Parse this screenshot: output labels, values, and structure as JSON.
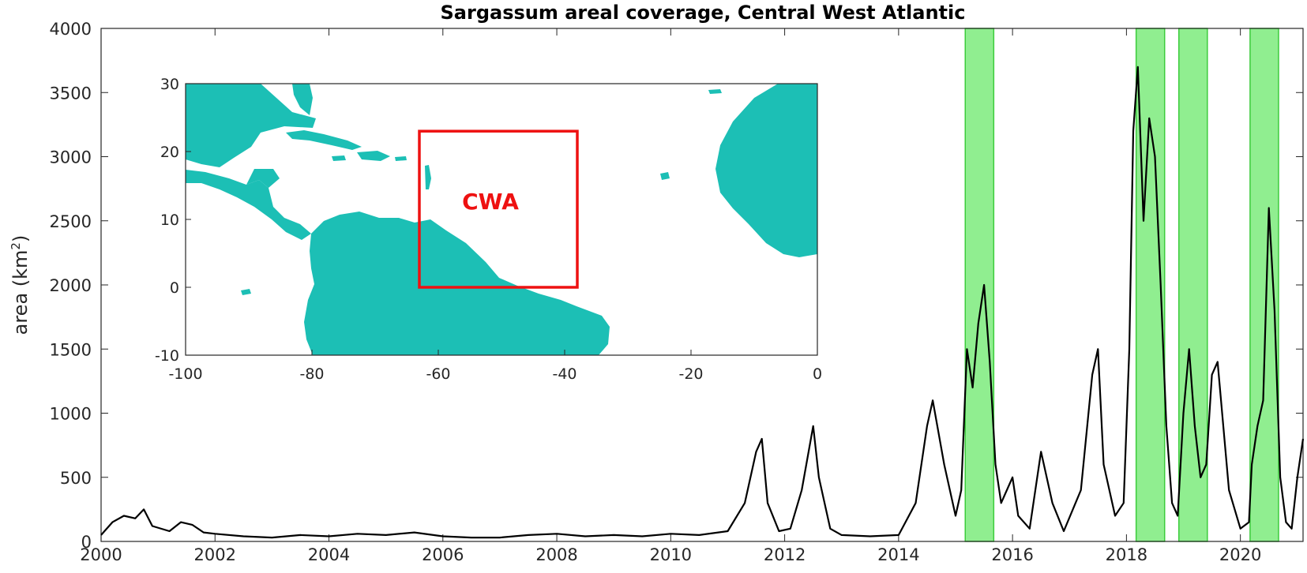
{
  "chart_data": [
    {
      "type": "line",
      "title": "Sargassum areal coverage, Central West Atlantic",
      "ylabel_text": "area (km",
      "ylabel_sup": "2",
      "ylabel_close": ")",
      "xlim": [
        2000,
        2021.1
      ],
      "ylim": [
        0,
        4000
      ],
      "x_ticks": [
        2000,
        2002,
        2004,
        2006,
        2008,
        2010,
        2012,
        2014,
        2016,
        2018,
        2020
      ],
      "x_tick_labels": [
        "2000",
        "2002",
        "2004",
        "2006",
        "2008",
        "2010",
        "2012",
        "2014",
        "2016",
        "2018",
        "2020"
      ],
      "y_ticks": [
        0,
        500,
        1000,
        1500,
        2000,
        2500,
        3000,
        3500,
        4000
      ],
      "y_tick_labels": [
        "0",
        "500",
        "1000",
        "1500",
        "2000",
        "2500",
        "3000",
        "3500",
        "4000"
      ],
      "line_color": "#000000",
      "highlight_color": "#90ee90",
      "highlight_edge_color": "#3ccc3c",
      "highlight_periods": [
        [
          2015.17,
          2015.67
        ],
        [
          2018.17,
          2018.67
        ],
        [
          2018.92,
          2019.42
        ],
        [
          2020.17,
          2020.67
        ]
      ],
      "series": [
        {
          "x": [
            2000.0,
            2000.2,
            2000.4,
            2000.6,
            2000.75,
            2000.9,
            2001.2,
            2001.4,
            2001.6,
            2001.8,
            2002.0,
            2002.5,
            2003.0,
            2003.5,
            2004.0,
            2004.5,
            2005.0,
            2005.5,
            2006.0,
            2006.5,
            2007.0,
            2007.5,
            2008.0,
            2008.5,
            2009.0,
            2009.5,
            2010.0,
            2010.5,
            2011.0,
            2011.3,
            2011.5,
            2011.6,
            2011.7,
            2011.9,
            2012.1,
            2012.3,
            2012.5,
            2012.6,
            2012.8,
            2013.0,
            2013.5,
            2014.0,
            2014.3,
            2014.5,
            2014.6,
            2014.8,
            2015.0,
            2015.1,
            2015.2,
            2015.3,
            2015.4,
            2015.5,
            2015.6,
            2015.7,
            2015.8,
            2016.0,
            2016.1,
            2016.3,
            2016.5,
            2016.7,
            2016.9,
            2017.2,
            2017.4,
            2017.5,
            2017.6,
            2017.8,
            2017.95,
            2018.05,
            2018.12,
            2018.2,
            2018.3,
            2018.4,
            2018.5,
            2018.6,
            2018.7,
            2018.8,
            2018.9,
            2019.0,
            2019.1,
            2019.2,
            2019.3,
            2019.4,
            2019.5,
            2019.6,
            2019.8,
            2020.0,
            2020.15,
            2020.2,
            2020.3,
            2020.4,
            2020.5,
            2020.6,
            2020.7,
            2020.8,
            2020.9,
            2021.0,
            2021.1
          ],
          "y": [
            50,
            150,
            200,
            180,
            250,
            120,
            80,
            150,
            130,
            70,
            60,
            40,
            30,
            50,
            40,
            60,
            50,
            70,
            40,
            30,
            30,
            50,
            60,
            40,
            50,
            40,
            60,
            50,
            80,
            300,
            700,
            800,
            300,
            80,
            100,
            400,
            900,
            500,
            100,
            50,
            40,
            50,
            300,
            900,
            1100,
            600,
            200,
            400,
            1500,
            1200,
            1700,
            2000,
            1400,
            600,
            300,
            500,
            200,
            100,
            700,
            300,
            80,
            400,
            1300,
            1500,
            600,
            200,
            300,
            1500,
            3200,
            3700,
            2500,
            3300,
            3000,
            2000,
            900,
            300,
            200,
            1000,
            1500,
            900,
            500,
            600,
            1300,
            1400,
            400,
            100,
            150,
            600,
            900,
            1100,
            2600,
            1800,
            500,
            150,
            100,
            500,
            800
          ]
        }
      ]
    },
    {
      "type": "map",
      "xlim": [
        -100,
        0
      ],
      "ylim": [
        -10,
        30
      ],
      "x_ticks": [
        -100,
        -80,
        -60,
        -40,
        -20,
        0
      ],
      "x_tick_labels": [
        "-100",
        "-80",
        "-60",
        "-40",
        "-20",
        "0"
      ],
      "y_ticks": [
        -10,
        0,
        10,
        20,
        30
      ],
      "y_tick_labels": [
        "-10",
        "0",
        "10",
        "20",
        "30"
      ],
      "land_color": "#1cbfb5",
      "region": {
        "label": "CWA",
        "lon": [
          -63,
          -38
        ],
        "lat": [
          0,
          23
        ],
        "color": "#ee1111"
      }
    }
  ]
}
